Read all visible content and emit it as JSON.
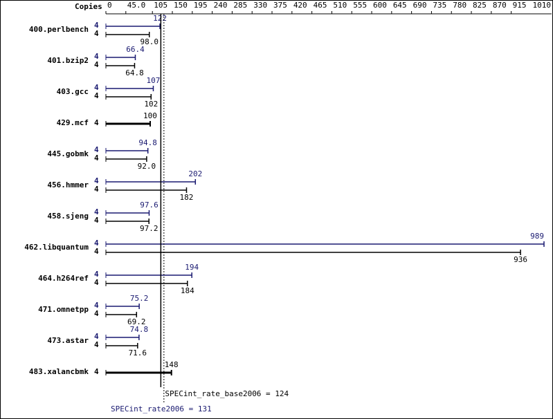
{
  "chart_data": {
    "type": "bar",
    "orientation": "horizontal",
    "copies_label": "Copies",
    "categories": [
      "400.perlbench",
      "401.bzip2",
      "403.gcc",
      "429.mcf",
      "445.gobmk",
      "456.hmmer",
      "458.sjeng",
      "462.libquantum",
      "464.h264ref",
      "471.omnetpp",
      "473.astar",
      "483.xalancbmk"
    ],
    "series": [
      {
        "name": "SPECint_rate2006",
        "color": "#191970",
        "copies": [
          4,
          4,
          4,
          null,
          4,
          4,
          4,
          4,
          4,
          4,
          4,
          null
        ],
        "values": [
          122,
          66.4,
          107,
          null,
          94.8,
          202,
          97.6,
          989,
          194,
          75.2,
          74.8,
          null
        ]
      },
      {
        "name": "SPECint_rate_base2006",
        "color": "#000000",
        "copies": [
          4,
          4,
          4,
          4,
          4,
          4,
          4,
          4,
          4,
          4,
          4,
          4
        ],
        "values": [
          98,
          64.8,
          102,
          100,
          92,
          182,
          97.2,
          936,
          184,
          69.2,
          71.6,
          148
        ],
        "value_labels": [
          "98.0",
          "64.8",
          "102",
          "100",
          "92.0",
          "182",
          "97.2",
          "936",
          "184",
          "69.2",
          "71.6",
          "148"
        ]
      }
    ],
    "summaries": [
      {
        "name": "SPECint_rate_base2006 =",
        "value": 124,
        "color": "#000000"
      },
      {
        "name": "SPECint_rate2006 =",
        "value": 131,
        "color": "#191970"
      }
    ],
    "xlim": [
      0,
      989
    ],
    "xticks": [
      0,
      {
        "value": 45,
        "label": "45.0"
      },
      105,
      150,
      195,
      240,
      285,
      330,
      375,
      420,
      465,
      510,
      555,
      600,
      645,
      690,
      735,
      780,
      825,
      870,
      915,
      1010
    ]
  }
}
